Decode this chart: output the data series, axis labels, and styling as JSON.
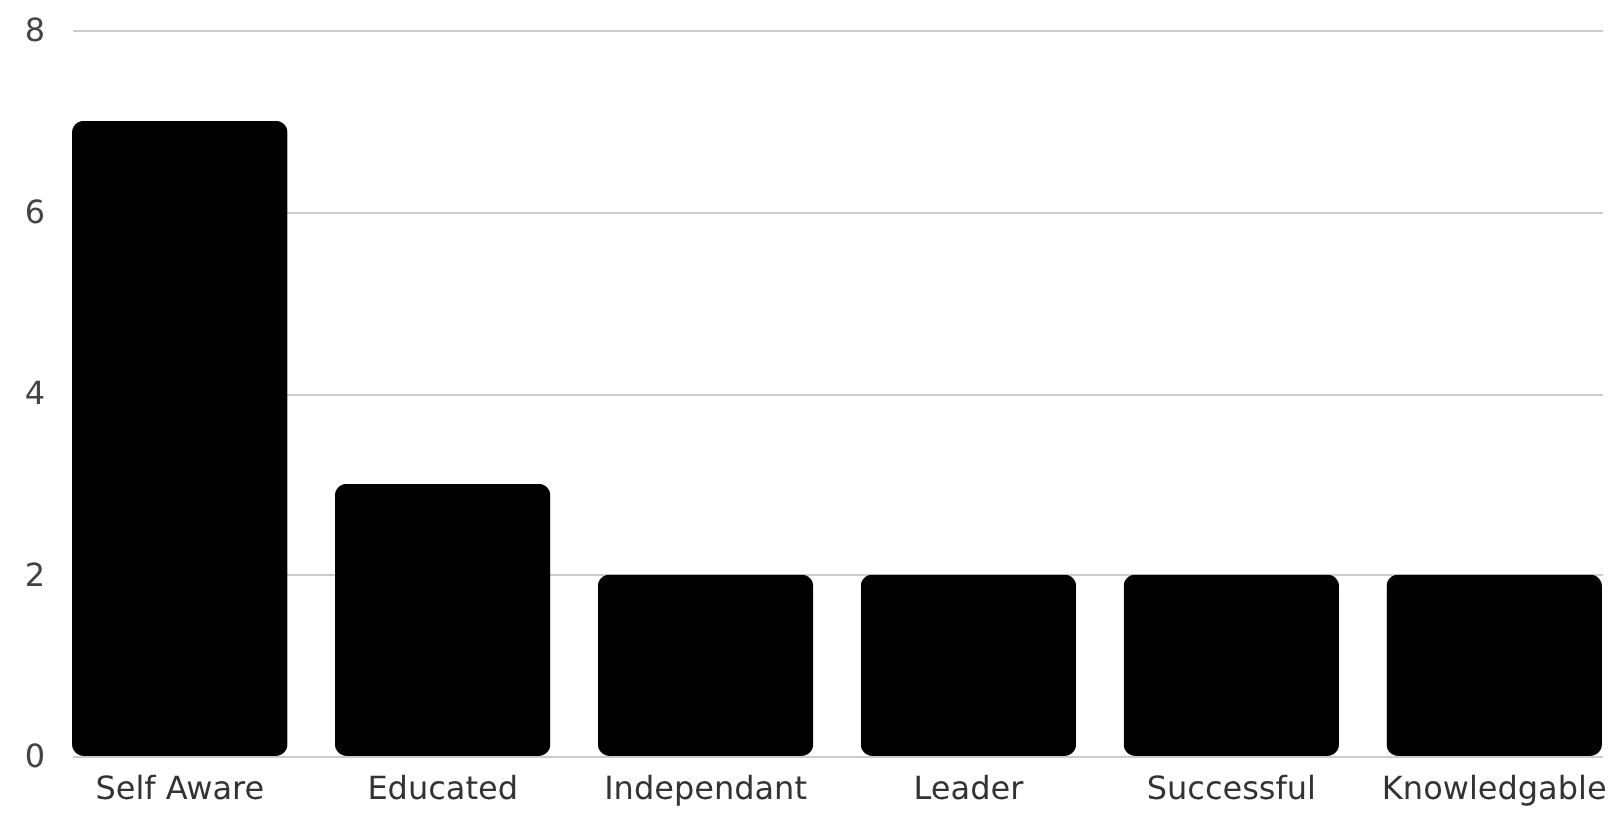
{
  "chart_data": {
    "type": "bar",
    "categories": [
      "Self Aware",
      "Educated",
      "Independant",
      "Leader",
      "Successful",
      "Knowledgable"
    ],
    "values": [
      7,
      3,
      2,
      2,
      2,
      2
    ],
    "color": "#000000",
    "ylim": [
      0,
      8
    ],
    "yticks": [
      0,
      2,
      4,
      6,
      8
    ],
    "grid": "y"
  }
}
